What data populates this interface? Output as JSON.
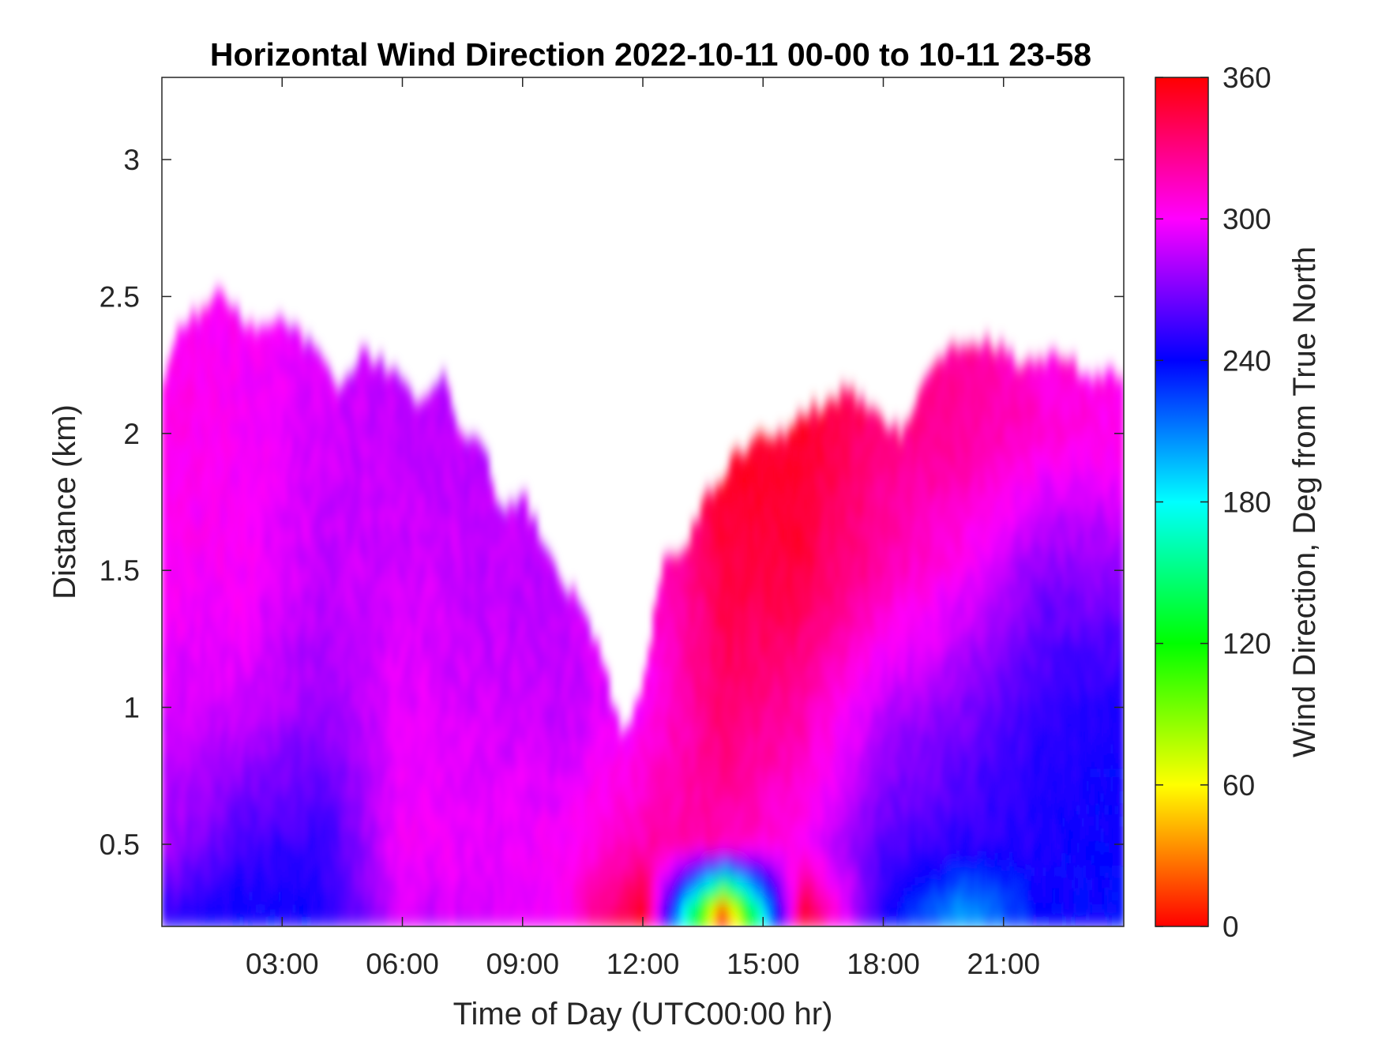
{
  "chart_data": {
    "type": "heatmap",
    "title": "Horizontal Wind Direction 2022-10-11 00-00 to 10-11 23-58",
    "xlabel": "Time of Day (UTC00:00 hr)",
    "ylabel": "Distance (km)",
    "x_unit": "hours UTC",
    "xlim": [
      0,
      24
    ],
    "ylim": [
      0.2,
      3.3
    ],
    "x_ticks": [
      3,
      6,
      9,
      12,
      15,
      18,
      21
    ],
    "x_tick_labels": [
      "03:00",
      "06:00",
      "09:00",
      "12:00",
      "15:00",
      "18:00",
      "21:00"
    ],
    "y_ticks": [
      0.5,
      1,
      1.5,
      2,
      2.5,
      3
    ],
    "y_tick_labels": [
      "0.5",
      "1",
      "1.5",
      "2",
      "2.5",
      "3"
    ],
    "colorbar": {
      "label": "Wind Direction, Deg from True North",
      "range": [
        0,
        360
      ],
      "ticks": [
        0,
        60,
        120,
        180,
        240,
        300,
        360
      ],
      "tick_labels": [
        "0",
        "60",
        "120",
        "180",
        "240",
        "300",
        "360"
      ],
      "colormap": "hsv",
      "stops": [
        {
          "value": 0,
          "color": "#ff0000"
        },
        {
          "value": 60,
          "color": "#ffff00"
        },
        {
          "value": 120,
          "color": "#00ff00"
        },
        {
          "value": 180,
          "color": "#00ffff"
        },
        {
          "value": 240,
          "color": "#0000ff"
        },
        {
          "value": 300,
          "color": "#ff00ff"
        },
        {
          "value": 360,
          "color": "#ff0000"
        }
      ]
    },
    "data_top_height_km": {
      "time_h": [
        0,
        0.5,
        1,
        1.5,
        2,
        2.5,
        3,
        3.5,
        4,
        4.5,
        5,
        5.5,
        6,
        6.5,
        7,
        7.5,
        8,
        8.5,
        9,
        9.5,
        10,
        10.5,
        11,
        11.5,
        12,
        12.5,
        13,
        13.5,
        14,
        14.5,
        15,
        15.5,
        16,
        16.5,
        17,
        17.5,
        18,
        18.5,
        19,
        19.5,
        20,
        20.5,
        21,
        21.5,
        22,
        22.5,
        23,
        23.5,
        24
      ],
      "height_km": [
        2.2,
        2.4,
        2.45,
        2.52,
        2.42,
        2.38,
        2.42,
        2.35,
        2.3,
        2.15,
        2.3,
        2.25,
        2.2,
        2.1,
        2.2,
        2.0,
        1.95,
        1.7,
        1.78,
        1.6,
        1.45,
        1.38,
        1.15,
        0.9,
        1.05,
        1.55,
        1.56,
        1.75,
        1.85,
        1.95,
        1.98,
        2.0,
        2.08,
        2.1,
        2.15,
        2.12,
        2.05,
        2.0,
        2.2,
        2.3,
        2.3,
        2.35,
        2.3,
        2.25,
        2.25,
        2.3,
        2.2,
        2.22,
        2.22
      ]
    },
    "field_samples_deg": {
      "time_h": [
        0,
        2,
        4,
        6,
        8,
        10,
        12,
        14,
        16,
        18,
        20,
        22,
        24
      ],
      "height_km": [
        0.25,
        0.5,
        1.0,
        1.5,
        2.0
      ],
      "values": [
        [
          250,
          240,
          245,
          290,
          290,
          300,
          355,
          5,
          350,
          245,
          200,
          240,
          240
        ],
        [
          280,
          255,
          250,
          300,
          295,
          300,
          320,
          320,
          300,
          260,
          250,
          245,
          240
        ],
        [
          290,
          290,
          275,
          295,
          290,
          285,
          300,
          335,
          320,
          285,
          270,
          250,
          245
        ],
        [
          300,
          300,
          285,
          290,
          285,
          null,
          305,
          345,
          345,
          320,
          300,
          270,
          275
        ],
        [
          305,
          300,
          290,
          285,
          null,
          null,
          null,
          355,
          350,
          330,
          325,
          310,
          305
        ]
      ]
    }
  }
}
